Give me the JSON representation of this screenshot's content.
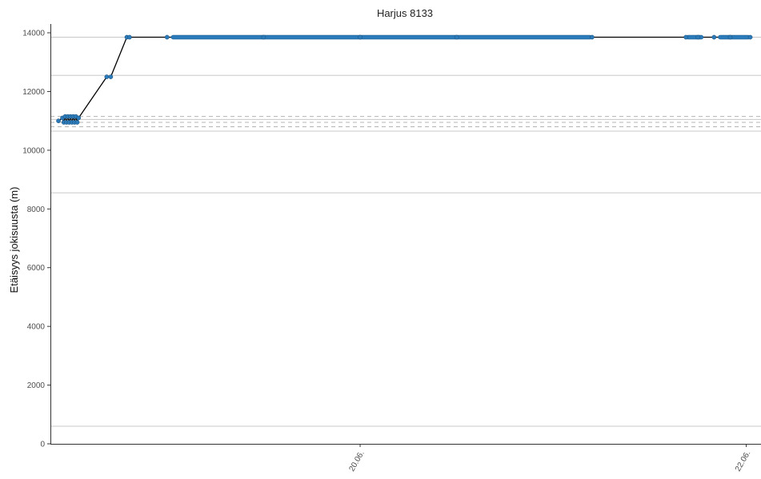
{
  "chart_data": {
    "type": "line",
    "title": "Harjus 8133",
    "xlabel": "",
    "ylabel": "Etäisyys jokisuusta (m)",
    "ylim": [
      0,
      14300
    ],
    "xlim": [
      "2022-06-18T09:30",
      "2022-06-22T01:50"
    ],
    "yticks": [
      0,
      2000,
      4000,
      6000,
      8000,
      10000,
      12000,
      14000
    ],
    "ytick_labels": [
      "0",
      "2000",
      "4000",
      "6000",
      "8000",
      "10000",
      "12000",
      "14000"
    ],
    "xticks": [
      {
        "label": "20.06.",
        "t": "2022-06-20T00:00"
      },
      {
        "label": "22.06.",
        "t": "2022-06-22T00:00"
      }
    ],
    "grid": false,
    "legend": "none",
    "reference_lines": {
      "solid": [
        600,
        8550,
        10650,
        11050,
        12550,
        13850
      ],
      "dashed": [
        10800,
        10950,
        11150
      ]
    },
    "series": [
      {
        "color": "#2b7bba",
        "line_color": "#000000",
        "points": [
          {
            "t": "2022-06-18T10:30",
            "y": 11000
          },
          {
            "t": "2022-06-18T11:00",
            "y": 11100
          },
          {
            "t": "2022-06-18T11:10",
            "y": 10950
          },
          {
            "t": "2022-06-18T11:20",
            "y": 11150
          },
          {
            "t": "2022-06-18T11:30",
            "y": 10950
          },
          {
            "t": "2022-06-18T11:40",
            "y": 11150
          },
          {
            "t": "2022-06-18T11:50",
            "y": 10950
          },
          {
            "t": "2022-06-18T12:00",
            "y": 11150
          },
          {
            "t": "2022-06-18T12:10",
            "y": 10950
          },
          {
            "t": "2022-06-18T12:20",
            "y": 11150
          },
          {
            "t": "2022-06-18T12:30",
            "y": 10950
          },
          {
            "t": "2022-06-18T12:40",
            "y": 11150
          },
          {
            "t": "2022-06-18T12:50",
            "y": 10950
          },
          {
            "t": "2022-06-18T13:00",
            "y": 11100
          },
          {
            "t": "2022-06-18T16:30",
            "y": 12500
          },
          {
            "t": "2022-06-18T17:00",
            "y": 12500
          },
          {
            "t": "2022-06-18T19:00",
            "y": 13850
          },
          {
            "t": "2022-06-18T19:20",
            "y": 13850
          },
          {
            "t": "2022-06-19T00:00",
            "y": 13850
          },
          {
            "t": "2022-06-19T12:00",
            "y": 13850
          },
          {
            "t": "2022-06-20T00:00",
            "y": 13850
          },
          {
            "t": "2022-06-20T12:00",
            "y": 13850
          },
          {
            "t": "2022-06-21T04:50",
            "y": 13850
          },
          {
            "t": "2022-06-21T16:30",
            "y": 13850
          },
          {
            "t": "2022-06-21T18:00",
            "y": 13850
          },
          {
            "t": "2022-06-21T20:00",
            "y": 13850
          },
          {
            "t": "2022-06-21T22:00",
            "y": 13850
          },
          {
            "t": "2022-06-22T00:30",
            "y": 13850
          }
        ],
        "dense_runs": [
          {
            "t_start": "2022-06-19T00:30",
            "t_end": "2022-06-21T04:50",
            "y": 13850
          },
          {
            "t_start": "2022-06-21T16:30",
            "t_end": "2022-06-21T18:40",
            "y": 13850
          },
          {
            "t_start": "2022-06-21T20:30",
            "t_end": "2022-06-22T00:30",
            "y": 13850
          }
        ]
      }
    ]
  }
}
